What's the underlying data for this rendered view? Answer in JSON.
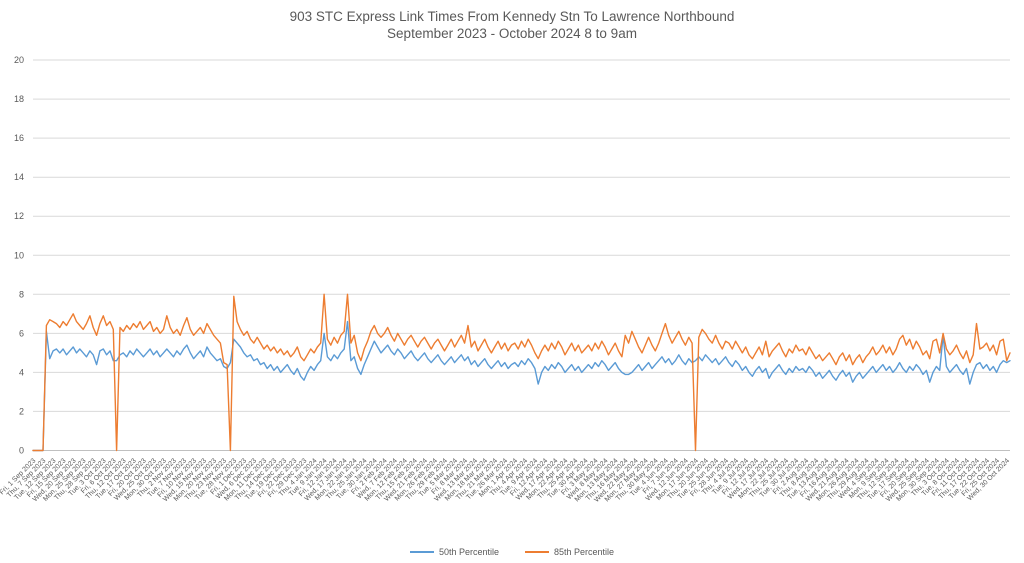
{
  "chart_data": {
    "type": "line",
    "title": "903 STC Express Link Times From Kennedy Stn To Lawrence Northbound",
    "subtitle": "September 2023 - October 2024 8 to 9am",
    "xlabel": "",
    "ylabel": "",
    "ylim": [
      0,
      20
    ],
    "ytick_step": 2,
    "y_ticks": [
      0,
      2,
      4,
      6,
      8,
      10,
      12,
      14,
      16,
      18,
      20
    ],
    "grid": true,
    "legend_position": "bottom",
    "x_labels_every": 3,
    "x_tick_labels": [
      "Fri, 1 Sep 2023",
      "Thu, 7 Sep 2023",
      "Tue, 12 Sep 2023",
      "Fri, 15 Sep 2023",
      "Wed, 20 Sep 2023",
      "Mon, 25 Sep 2023",
      "Thu, 28 Sep 2023",
      "Tue, 3 Oct 2023",
      "Fri, 6 Oct 2023",
      "Thu, 12 Oct 2023",
      "Tue, 17 Oct 2023",
      "Fri, 20 Oct 2023",
      "Wed, 25 Oct 2023",
      "Mon, 30 Oct 2023",
      "Thu, 2 Nov 2023",
      "Tue, 7 Nov 2023",
      "Fri, 10 Nov 2023",
      "Wed, 15 Nov 2023",
      "Mon, 20 Nov 2023",
      "Thu, 23 Nov 2023",
      "Tue, 28 Nov 2023",
      "Fri, 1 Dec 2023",
      "Wed, 6 Dec 2023",
      "Mon, 11 Dec 2023",
      "Thu, 14 Dec 2023",
      "Tue, 19 Dec 2023",
      "Fri, 22 Dec 2023",
      "Fri, 29 Dec 2023",
      "Thu, 4 Jan 2024",
      "Tue, 9 Jan 2024",
      "Fri, 12 Jan 2024",
      "Wed, 17 Jan 2024",
      "Mon, 22 Jan 2024",
      "Thu, 25 Jan 2024",
      "Tue, 30 Jan 2024",
      "Fri, 2 Feb 2024",
      "Wed, 7 Feb 2024",
      "Mon, 12 Feb 2024",
      "Thu, 15 Feb 2024",
      "Wed, 21 Feb 2024",
      "Mon, 26 Feb 2024",
      "Thu, 29 Feb 2024",
      "Tue, 5 Mar 2024",
      "Fri, 8 Mar 2024",
      "Wed, 13 Mar 2024",
      "Mon, 18 Mar 2024",
      "Thu, 21 Mar 2024",
      "Tue, 26 Mar 2024",
      "Mon, 1 Apr 2024",
      "Thu, 4 Apr 2024",
      "Tue, 9 Apr 2024",
      "Fri, 12 Apr 2024",
      "Wed, 17 Apr 2024",
      "Mon, 22 Apr 2024",
      "Thu, 25 Apr 2024",
      "Tue, 30 Apr 2024",
      "Fri, 3 May 2024",
      "Wed, 8 May 2024",
      "Mon, 13 May 2024",
      "Thu, 16 May 2024",
      "Wed, 22 May 2024",
      "Mon, 27 May 2024",
      "Thu, 30 May 2024",
      "Tue, 4 Jun 2024",
      "Fri, 7 Jun 2024",
      "Wed, 12 Jun 2024",
      "Mon, 17 Jun 2024",
      "Thu, 20 Jun 2024",
      "Tue, 25 Jun 2024",
      "Fri, 28 Jun 2024",
      "Thu, 4 Jul 2024",
      "Tue, 9 Jul 2024",
      "Fri, 12 Jul 2024",
      "Wed, 17 Jul 2024",
      "Mon, 22 Jul 2024",
      "Thu, 25 Jul 2024",
      "Tue, 30 Jul 2024",
      "Fri, 2 Aug 2024",
      "Thu, 8 Aug 2024",
      "Tue, 13 Aug 2024",
      "Fri, 16 Aug 2024",
      "Wed, 21 Aug 2024",
      "Mon, 26 Aug 2024",
      "Thu, 29 Aug 2024",
      "Wed, 4 Sep 2024",
      "Mon, 9 Sep 2024",
      "Thu, 12 Sep 2024",
      "Tue, 17 Sep 2024",
      "Fri, 20 Sep 2024",
      "Wed, 25 Sep 2024",
      "Mon, 30 Sep 2024",
      "Thu, 3 Oct 2024",
      "Tue, 8 Oct 2024",
      "Fri, 11 Oct 2024",
      "Thu, 17 Oct 2024",
      "Tue, 22 Oct 2024",
      "Fri, 25 Oct 2024",
      "Wed, 30 Oct 2024"
    ],
    "series": [
      {
        "name": "50th Percentile",
        "color": "#5B9BD5",
        "values": [
          0,
          0,
          0,
          0,
          6.1,
          4.7,
          5.1,
          5.2,
          5.0,
          5.2,
          4.9,
          5.1,
          5.3,
          5.0,
          5.2,
          5.0,
          4.8,
          5.1,
          4.9,
          4.4,
          5.1,
          5.2,
          4.9,
          5.1,
          4.6,
          4.6,
          4.9,
          5.0,
          4.8,
          5.1,
          4.9,
          5.2,
          5.0,
          4.8,
          5.0,
          5.2,
          4.9,
          5.1,
          4.8,
          5.0,
          5.2,
          5.0,
          4.8,
          5.1,
          4.9,
          5.2,
          5.4,
          5.0,
          4.7,
          4.9,
          5.1,
          4.8,
          5.3,
          5.0,
          4.8,
          4.6,
          4.7,
          4.3,
          4.2,
          4.5,
          5.7,
          5.5,
          5.3,
          5.0,
          4.8,
          4.9,
          4.6,
          4.7,
          4.4,
          4.5,
          4.2,
          4.4,
          4.1,
          4.3,
          4.0,
          4.2,
          4.4,
          4.1,
          3.9,
          4.2,
          3.8,
          3.6,
          4.0,
          4.3,
          4.1,
          4.4,
          4.6,
          6.0,
          4.8,
          4.6,
          4.9,
          4.7,
          5.0,
          5.2,
          6.6,
          4.6,
          4.8,
          4.2,
          3.9,
          4.4,
          4.8,
          5.2,
          5.6,
          5.3,
          5.0,
          5.2,
          5.4,
          5.1,
          4.9,
          5.2,
          5.0,
          4.7,
          4.9,
          5.1,
          4.8,
          4.6,
          4.8,
          5.0,
          4.7,
          4.5,
          4.7,
          4.9,
          4.6,
          4.4,
          4.6,
          4.8,
          4.5,
          4.7,
          4.9,
          4.6,
          4.8,
          4.4,
          4.6,
          4.3,
          4.5,
          4.7,
          4.4,
          4.2,
          4.4,
          4.6,
          4.3,
          4.5,
          4.2,
          4.4,
          4.5,
          4.3,
          4.6,
          4.4,
          4.7,
          4.5,
          4.2,
          3.4,
          4.0,
          4.3,
          4.1,
          4.4,
          4.2,
          4.5,
          4.3,
          4.0,
          4.2,
          4.4,
          4.1,
          4.3,
          4.0,
          4.2,
          4.4,
          4.2,
          4.5,
          4.3,
          4.6,
          4.4,
          4.1,
          4.3,
          4.5,
          4.2,
          4.0,
          3.9,
          3.9,
          4.0,
          4.2,
          4.4,
          4.1,
          4.3,
          4.5,
          4.2,
          4.4,
          4.6,
          4.8,
          4.5,
          4.7,
          4.4,
          4.6,
          4.9,
          4.6,
          4.4,
          4.7,
          4.5,
          4.6,
          4.8,
          4.6,
          4.9,
          4.7,
          4.5,
          4.7,
          4.4,
          4.6,
          4.8,
          4.5,
          4.3,
          4.6,
          4.4,
          4.1,
          4.3,
          4.0,
          3.8,
          4.1,
          4.3,
          4.0,
          4.2,
          3.7,
          4.0,
          4.2,
          4.4,
          4.1,
          3.9,
          4.2,
          4.0,
          4.3,
          4.1,
          4.2,
          4.0,
          4.3,
          4.1,
          3.8,
          4.0,
          3.7,
          3.9,
          4.1,
          3.8,
          3.6,
          3.9,
          4.1,
          3.8,
          4.0,
          3.5,
          3.8,
          4.0,
          3.7,
          3.9,
          4.1,
          4.3,
          4.0,
          4.2,
          4.4,
          4.1,
          4.3,
          4.0,
          4.2,
          4.5,
          4.2,
          4.0,
          4.3,
          4.1,
          4.4,
          4.2,
          3.9,
          4.1,
          3.5,
          4.0,
          4.3,
          4.1,
          5.9,
          4.3,
          4.0,
          4.2,
          4.4,
          4.1,
          3.9,
          4.2,
          3.4,
          4.0,
          4.4,
          4.5,
          4.2,
          4.4,
          4.1,
          4.3,
          4.0,
          4.4,
          4.6,
          4.5,
          4.6
        ]
      },
      {
        "name": "85th Percentile",
        "color": "#ED7D31",
        "values": [
          0,
          0,
          0,
          0,
          6.4,
          6.7,
          6.6,
          6.5,
          6.3,
          6.6,
          6.4,
          6.7,
          7.0,
          6.6,
          6.4,
          6.2,
          6.5,
          6.9,
          6.3,
          5.9,
          6.5,
          6.9,
          6.4,
          6.6,
          6.2,
          0,
          6.3,
          6.1,
          6.4,
          6.2,
          6.5,
          6.3,
          6.6,
          6.2,
          6.4,
          6.6,
          6.1,
          6.3,
          6.0,
          6.2,
          6.9,
          6.3,
          6.0,
          6.2,
          5.9,
          6.4,
          6.8,
          6.2,
          5.9,
          6.1,
          6.3,
          6.0,
          6.5,
          6.2,
          5.9,
          5.7,
          5.5,
          4.5,
          4.4,
          0,
          7.9,
          6.6,
          6.2,
          5.9,
          6.1,
          5.7,
          5.5,
          5.8,
          5.5,
          5.2,
          5.4,
          5.1,
          5.3,
          5.0,
          5.2,
          4.9,
          5.1,
          4.8,
          5.0,
          5.3,
          4.8,
          4.6,
          4.9,
          5.2,
          5.0,
          5.3,
          5.5,
          8.0,
          5.7,
          5.4,
          5.8,
          5.5,
          5.9,
          6.1,
          8.0,
          5.5,
          5.9,
          5.0,
          4.6,
          5.2,
          5.6,
          6.1,
          6.4,
          6.0,
          5.8,
          6.0,
          6.3,
          5.9,
          5.6,
          6.0,
          5.7,
          5.4,
          5.7,
          5.9,
          5.6,
          5.3,
          5.6,
          5.8,
          5.5,
          5.2,
          5.5,
          5.7,
          5.4,
          5.1,
          5.4,
          5.7,
          5.3,
          5.6,
          5.9,
          5.5,
          6.4,
          5.3,
          5.6,
          5.1,
          5.4,
          5.7,
          5.3,
          5.0,
          5.3,
          5.6,
          5.2,
          5.5,
          5.1,
          5.4,
          5.5,
          5.2,
          5.6,
          5.3,
          5.7,
          5.4,
          5.0,
          4.7,
          5.1,
          5.4,
          5.1,
          5.5,
          5.2,
          5.6,
          5.3,
          4.9,
          5.2,
          5.5,
          5.1,
          5.4,
          5.0,
          5.2,
          5.4,
          5.1,
          5.5,
          5.2,
          5.6,
          5.3,
          4.9,
          5.2,
          5.5,
          5.1,
          4.8,
          5.9,
          5.5,
          6.1,
          5.7,
          5.3,
          5.0,
          5.4,
          5.8,
          5.4,
          5.1,
          5.5,
          6.0,
          6.5,
          5.9,
          5.5,
          5.8,
          6.1,
          5.7,
          5.4,
          5.8,
          5.5,
          0,
          5.8,
          6.2,
          6.0,
          5.7,
          5.5,
          5.9,
          5.5,
          5.2,
          5.6,
          5.5,
          5.2,
          5.6,
          5.3,
          5.0,
          5.3,
          4.9,
          4.7,
          5.0,
          5.3,
          4.9,
          5.6,
          4.8,
          5.1,
          5.3,
          5.5,
          5.1,
          4.8,
          5.2,
          5.0,
          5.4,
          5.1,
          5.2,
          4.9,
          5.3,
          5.0,
          4.7,
          4.9,
          4.6,
          4.8,
          5.0,
          4.7,
          4.4,
          4.8,
          5.0,
          4.6,
          4.9,
          4.4,
          4.7,
          4.9,
          4.5,
          4.8,
          5.0,
          5.3,
          4.9,
          5.1,
          5.4,
          5.0,
          5.3,
          4.9,
          5.2,
          5.7,
          5.9,
          5.4,
          5.7,
          5.2,
          5.6,
          5.3,
          4.9,
          5.1,
          4.7,
          5.6,
          5.7,
          5.0,
          6.0,
          5.2,
          4.9,
          5.1,
          5.4,
          5.0,
          4.7,
          5.1,
          4.5,
          4.9,
          6.5,
          5.2,
          5.3,
          5.5,
          5.1,
          5.4,
          4.9,
          5.6,
          5.7,
          4.6,
          5.0
        ]
      }
    ],
    "colors": {
      "gridline": "#D9D9D9",
      "axis_line": "#C0C0C0",
      "tick_label": "#595959",
      "title_text": "#595959",
      "background": "#FFFFFF"
    }
  }
}
